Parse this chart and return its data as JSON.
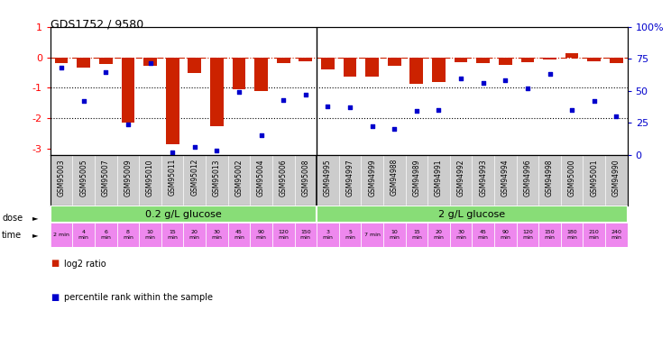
{
  "title": "GDS1752 / 9580",
  "samples": [
    "GSM95003",
    "GSM95005",
    "GSM95007",
    "GSM95009",
    "GSM95010",
    "GSM95011",
    "GSM95012",
    "GSM95013",
    "GSM95002",
    "GSM95004",
    "GSM95006",
    "GSM95008",
    "GSM94995",
    "GSM94997",
    "GSM94999",
    "GSM94988",
    "GSM94989",
    "GSM94991",
    "GSM94992",
    "GSM94993",
    "GSM94994",
    "GSM94996",
    "GSM94998",
    "GSM95000",
    "GSM95001",
    "GSM94990"
  ],
  "log2_ratio": [
    -0.18,
    -0.35,
    -0.22,
    -2.15,
    -0.28,
    -2.85,
    -0.52,
    -2.25,
    -1.05,
    -1.1,
    -0.18,
    -0.12,
    -0.38,
    -0.62,
    -0.62,
    -0.28,
    -0.88,
    -0.82,
    -0.15,
    -0.18,
    -0.25,
    -0.15,
    -0.08,
    0.15,
    -0.12,
    -0.18
  ],
  "percentile": [
    68,
    42,
    65,
    24,
    72,
    2,
    6,
    3,
    49,
    15,
    43,
    47,
    38,
    37,
    22,
    20,
    34,
    35,
    60,
    56,
    58,
    52,
    63,
    35,
    42,
    30
  ],
  "time_labels_low": [
    "2 min",
    "4\nmin",
    "6\nmin",
    "8\nmin",
    "10\nmin",
    "15\nmin",
    "20\nmin",
    "30\nmin",
    "45\nmin",
    "90\nmin",
    "120\nmin",
    "150\nmin"
  ],
  "time_labels_high": [
    "3\nmin",
    "5\nmin",
    "7 min",
    "10\nmin",
    "15\nmin",
    "20\nmin",
    "30\nmin",
    "45\nmin",
    "90\nmin",
    "120\nmin",
    "150\nmin",
    "180\nmin",
    "210\nmin",
    "240\nmin"
  ],
  "n_low": 12,
  "n_high": 14,
  "dose_low_label": "0.2 g/L glucose",
  "dose_high_label": "2 g/L glucose",
  "bar_color": "#cc2200",
  "dot_color": "#0000cc",
  "dose_low_color": "#88dd77",
  "dose_high_color": "#88dd77",
  "time_color": "#ee88ee",
  "ylim_left": [
    -3.2,
    1.0
  ],
  "ylim_right": [
    0,
    100
  ],
  "yticks_left": [
    1,
    0,
    -1,
    -2,
    -3
  ],
  "yticks_right": [
    100,
    75,
    50,
    25,
    0
  ],
  "hline_positions": [
    0,
    -1,
    -2
  ],
  "background_color": "#ffffff",
  "sample_bg_color": "#cccccc"
}
